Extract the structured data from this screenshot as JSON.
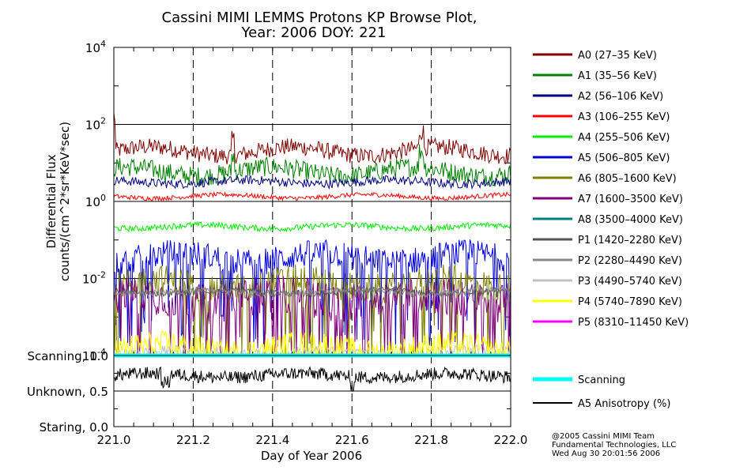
{
  "chart_data": {
    "type": "line",
    "title": "Cassini MIMI LEMMS Protons KP Browse Plot,",
    "subtitle": "Year: 2006 DOY: 221",
    "xlabel": "Day of Year 2006",
    "ylabel_line1": "Differential Flux",
    "ylabel_line2": "counts/(cm^2*sr*KeV*sec)",
    "x_range": [
      221.0,
      222.0
    ],
    "x_ticks": [
      "221.0",
      "221.2",
      "221.4",
      "221.6",
      "221.8",
      "222.0"
    ],
    "x_tick_values": [
      221.0,
      221.2,
      221.4,
      221.6,
      221.8,
      222.0
    ],
    "y_scale": "log",
    "y_range": [
      0.0001,
      10000
    ],
    "y_ticks": [
      {
        "value": 10000,
        "base": "10",
        "exp": "4"
      },
      {
        "value": 100,
        "base": "10",
        "exp": "2"
      },
      {
        "value": 1,
        "base": "10",
        "exp": "0"
      },
      {
        "value": 0.01,
        "base": "10",
        "exp": "-2"
      },
      {
        "value": 0.0001,
        "base": "10",
        "exp": "-4"
      }
    ],
    "gridlines": "dashed vertical at ticks, horizontal at decades",
    "series": [
      {
        "name": "A0 (27–35 KeV)",
        "color": "#800000",
        "mean": 20,
        "var": 0.22,
        "drops": 0
      },
      {
        "name": "A1 (35–56 KeV)",
        "color": "#008000",
        "mean": 6,
        "var": 0.25,
        "drops": 0
      },
      {
        "name": "A2 (56–106 KeV)",
        "color": "#000080",
        "mean": 3.2,
        "var": 0.12,
        "drops": 0
      },
      {
        "name": "A3 (106–255 KeV)",
        "color": "#ff0000",
        "mean": 1.35,
        "var": 0.06,
        "drops": 0
      },
      {
        "name": "A4 (255–506 KeV)",
        "color": "#00ee00",
        "mean": 0.22,
        "var": 0.08,
        "drops": 0
      },
      {
        "name": "A5 (506–805 KeV)",
        "color": "#0000dd",
        "mean": 0.035,
        "var": 0.35,
        "drops": 0.12
      },
      {
        "name": "A6 (805–1600 KeV)",
        "color": "#808000",
        "mean": 0.007,
        "var": 0.4,
        "drops": 0.15
      },
      {
        "name": "A7 (1600–3500 KeV)",
        "color": "#800080",
        "mean": 0.003,
        "var": 0.5,
        "drops": 0.18
      },
      {
        "name": "A8 (3500–4000 KeV)",
        "color": "#008080",
        "mean": 0.0001,
        "var": 0,
        "drops": 0
      },
      {
        "name": "P1 (1420–2280 KeV)",
        "color": "#555555",
        "mean": 0.0045,
        "var": 0.08,
        "drops": 0
      },
      {
        "name": "P2 (2280–4490 KeV)",
        "color": "#888888",
        "mean": 0.0045,
        "var": 0.08,
        "drops": 0
      },
      {
        "name": "P3 (4490–5740 KeV)",
        "color": "#c0c0c0",
        "mean": 0.00012,
        "var": 0.15,
        "drops": 0
      },
      {
        "name": "P4 (5740–7890 KeV)",
        "color": "#ffff00",
        "mean": 0.00015,
        "var": 0.35,
        "drops": 0
      },
      {
        "name": "P5 (8310–11450 KeV)",
        "color": "#ff00ff",
        "mean": 0.0001,
        "var": 0,
        "drops": 0
      }
    ],
    "lower_panel": {
      "y_ticks": [
        {
          "value": 1.0,
          "label": "Scanning, 1.0"
        },
        {
          "value": 0.5,
          "label": "Unknown, 0.5"
        },
        {
          "value": 0.0,
          "label": "Staring, 0.0"
        }
      ],
      "y_range": [
        0.0,
        1.0
      ],
      "series": [
        {
          "name": "Scanning",
          "color": "#00ffff",
          "value": 1.0
        },
        {
          "name": "A5 Anisotropy (%)",
          "color": "#000000",
          "mean": 0.72,
          "spread": 0.09
        }
      ]
    }
  },
  "footer": {
    "line1": "@2005 Cassini MIMI Team",
    "line2": "Fundamental Technologies, LLC",
    "line3": "Wed Aug 30 20:01:56 2006"
  }
}
